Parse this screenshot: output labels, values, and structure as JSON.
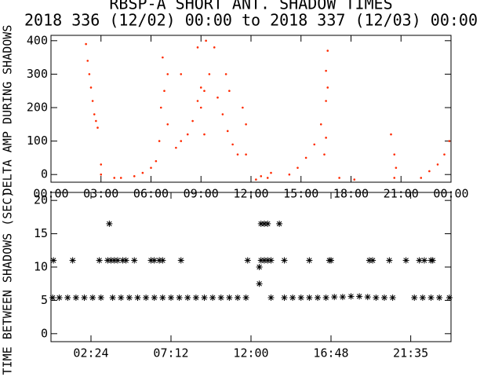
{
  "chart_data": [
    {
      "type": "scatter",
      "marker": "dot",
      "color": "#ff2a00",
      "title": "RBSP-A SHORT ANT. SHADOW TIMES",
      "subtitle": "2018 336 (12/02) 00:00 to 2018 337 (12/03) 00:00",
      "ylabel": "DELTA AMP DURING SHADOWS",
      "xlim": [
        0,
        24
      ],
      "ylim": [
        -23,
        416
      ],
      "xticks": [
        {
          "value": 0,
          "label": "00:00"
        },
        {
          "value": 3,
          "label": "03:00"
        },
        {
          "value": 6,
          "label": "06:00"
        },
        {
          "value": 9,
          "label": "09:00"
        },
        {
          "value": 12,
          "label": "12:00"
        },
        {
          "value": 15,
          "label": "15:00"
        },
        {
          "value": 18,
          "label": "18:00"
        },
        {
          "value": 21,
          "label": "21:00"
        },
        {
          "value": 24,
          "label": "00:00"
        }
      ],
      "yticks": [
        0,
        100,
        200,
        300,
        400
      ],
      "x": [
        2.1,
        2.2,
        2.3,
        2.4,
        2.5,
        2.6,
        2.7,
        2.8,
        3.0,
        3.0,
        3.8,
        4.2,
        5.0,
        5.5,
        6.0,
        6.3,
        6.5,
        6.6,
        6.7,
        6.8,
        7.0,
        7.0,
        7.5,
        7.8,
        7.8,
        8.2,
        8.5,
        8.8,
        9.0,
        9.2,
        9.5,
        9.8,
        9.3,
        8.8,
        10.0,
        10.3,
        10.6,
        10.9,
        11.2,
        9.2,
        9.0,
        10.5,
        10.7,
        11.5,
        11.7,
        11.7,
        12.3,
        12.6,
        13.0,
        13.2,
        14.3,
        14.8,
        15.3,
        15.8,
        16.2,
        16.5,
        16.6,
        16.5,
        16.6,
        16.5,
        16.4,
        17.3,
        18.2,
        20.4,
        20.6,
        20.7,
        20.6,
        22.2,
        22.7,
        23.2,
        23.6,
        23.9
      ],
      "values": [
        390,
        340,
        300,
        260,
        220,
        180,
        160,
        140,
        0,
        30,
        -10,
        -10,
        -5,
        5,
        20,
        40,
        100,
        200,
        350,
        250,
        150,
        300,
        80,
        300,
        100,
        120,
        160,
        220,
        200,
        250,
        300,
        380,
        400,
        380,
        230,
        180,
        130,
        90,
        60,
        120,
        260,
        300,
        250,
        200,
        150,
        60,
        -15,
        -5,
        -10,
        5,
        0,
        20,
        50,
        90,
        150,
        220,
        260,
        310,
        370,
        110,
        60,
        -10,
        -15,
        120,
        60,
        20,
        -10,
        -10,
        10,
        30,
        60,
        100
      ]
    },
    {
      "type": "scatter",
      "marker": "asterisk",
      "color": "#000000",
      "ylabel": "TIME BETWEEN SHADOWS (SEC)",
      "xlim": [
        0,
        24
      ],
      "ylim": [
        -1.2,
        21.2
      ],
      "xticks": [
        {
          "value": 2.4,
          "label": "02:24"
        },
        {
          "value": 7.2,
          "label": "07:12"
        },
        {
          "value": 12,
          "label": "12:00"
        },
        {
          "value": 16.8,
          "label": "16:48"
        },
        {
          "value": 21.583,
          "label": "21:35"
        }
      ],
      "yticks": [
        0,
        5,
        10,
        15,
        20
      ],
      "x": [
        0.1,
        0.5,
        1.0,
        1.5,
        2.0,
        2.5,
        3.0,
        3.7,
        4.2,
        4.7,
        5.2,
        5.7,
        6.2,
        6.7,
        7.2,
        7.7,
        8.2,
        8.7,
        9.2,
        9.7,
        10.2,
        10.7,
        11.2,
        11.7,
        13.2,
        14.0,
        14.5,
        15.0,
        15.5,
        16.0,
        16.5,
        17.0,
        17.5,
        18.0,
        18.5,
        19.0,
        19.5,
        20.0,
        20.5,
        21.8,
        22.3,
        22.8,
        23.3,
        23.9,
        0.15,
        1.3,
        2.9,
        3.4,
        3.6,
        3.8,
        4.0,
        4.3,
        4.5,
        5.0,
        6.0,
        6.2,
        6.5,
        6.7,
        7.8,
        11.8,
        12.6,
        12.8,
        13.0,
        13.2,
        14.0,
        15.5,
        16.7,
        16.8,
        19.1,
        19.3,
        20.3,
        21.3,
        22.1,
        22.4,
        22.8,
        22.9,
        3.5,
        12.6,
        12.8,
        13.0,
        13.7,
        12.5,
        12.5
      ],
      "values": [
        5.4,
        5.4,
        5.4,
        5.4,
        5.4,
        5.4,
        5.4,
        5.4,
        5.4,
        5.4,
        5.4,
        5.4,
        5.4,
        5.4,
        5.4,
        5.4,
        5.4,
        5.4,
        5.4,
        5.4,
        5.4,
        5.4,
        5.4,
        5.4,
        5.4,
        5.4,
        5.4,
        5.4,
        5.4,
        5.4,
        5.4,
        5.5,
        5.5,
        5.6,
        5.6,
        5.5,
        5.4,
        5.4,
        5.4,
        5.4,
        5.4,
        5.4,
        5.4,
        5.4,
        11,
        11,
        11,
        11,
        11,
        11,
        11,
        11,
        11,
        11,
        11,
        11,
        11,
        11,
        11,
        11,
        11,
        11,
        11,
        11,
        11,
        11,
        11,
        11,
        11,
        11,
        11,
        11,
        11,
        11,
        11,
        11,
        16.5,
        16.5,
        16.5,
        16.5,
        16.5,
        10,
        7.5
      ]
    }
  ]
}
